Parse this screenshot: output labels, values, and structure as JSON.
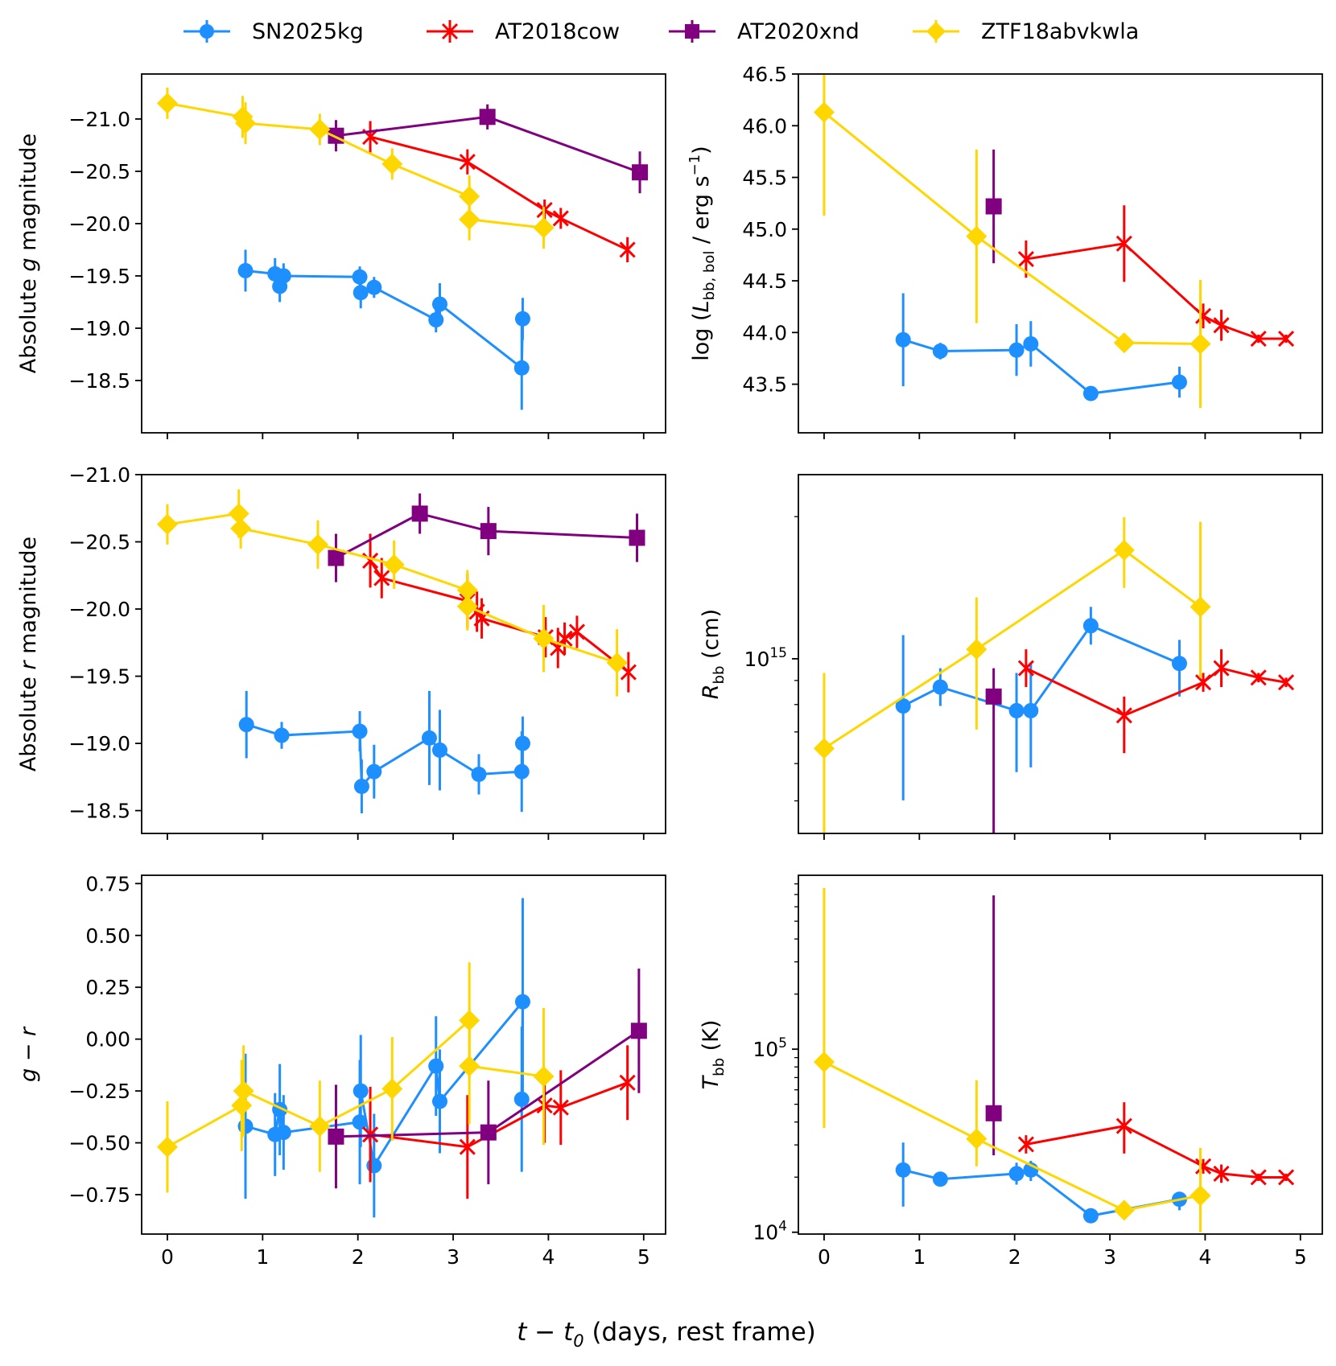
{
  "figure": {
    "xlabel_main": "t − t",
    "xlabel_sub": "0",
    "xlabel_rest": " (days, rest frame)",
    "series_colors": {
      "SN2025kg": "#1e8fff",
      "AT2018cow": "#ff0000",
      "AT2020xnd": "#800080",
      "ZTF18abvkwla": "#ffd700"
    },
    "series_markers": {
      "SN2025kg": "circle",
      "AT2018cow": "x",
      "AT2020xnd": "square",
      "ZTF18abvkwla": "diamond"
    }
  },
  "legend": {
    "placement": "top-center",
    "items": [
      "SN2025kg",
      "AT2018cow",
      "AT2020xnd",
      "ZTF18abvkwla"
    ]
  },
  "chart_data": [
    {
      "id": "g_mag",
      "type": "line",
      "ylabel": "Absolute g magnitude",
      "yscale": "linear",
      "yinvert": true,
      "xlim": [
        -0.27,
        5.23
      ],
      "ylim": [
        -18.0,
        -21.43
      ],
      "xticks": [
        0,
        1,
        2,
        3,
        4,
        5
      ],
      "yticks": [
        -21.0,
        -20.5,
        -20.0,
        -19.5,
        -19.0,
        -18.5
      ],
      "ytick_labels": [
        "−21.0",
        "−20.5",
        "−20.0",
        "−19.5",
        "−19.0",
        "−18.5"
      ],
      "show_xticklabels": false,
      "series": [
        {
          "name": "SN2025kg",
          "points": [
            [
              0.82,
              -19.55,
              0.2
            ],
            [
              1.13,
              -19.52,
              0.15
            ],
            [
              1.18,
              -19.4,
              0.15
            ],
            [
              1.22,
              -19.5,
              0.12
            ],
            [
              2.02,
              -19.49,
              0.1
            ],
            [
              2.03,
              -19.34,
              0.15
            ],
            [
              2.17,
              -19.39,
              0.1
            ],
            [
              2.82,
              -19.08,
              0.12
            ],
            [
              2.86,
              -19.23,
              0.2
            ],
            [
              3.72,
              -18.62,
              0.4
            ],
            [
              3.73,
              -19.09,
              0.2
            ]
          ]
        },
        {
          "name": "AT2018cow",
          "points": [
            [
              2.13,
              -20.83,
              0.15
            ],
            [
              3.15,
              -20.59,
              0.12
            ],
            [
              3.96,
              -20.13,
              0.1
            ],
            [
              4.13,
              -20.05,
              0.1
            ],
            [
              4.83,
              -19.75,
              0.12
            ]
          ]
        },
        {
          "name": "AT2020xnd",
          "points": [
            [
              1.77,
              -20.84,
              0.15
            ],
            [
              3.36,
              -21.02,
              0.12
            ],
            [
              4.96,
              -20.49,
              0.2
            ]
          ]
        },
        {
          "name": "ZTF18abvkwla",
          "points": [
            [
              0.0,
              -21.15,
              0.15
            ],
            [
              0.79,
              -21.02,
              0.2
            ],
            [
              0.82,
              -20.96,
              0.2
            ],
            [
              1.6,
              -20.9,
              0.15
            ],
            [
              2.36,
              -20.57,
              0.15
            ],
            [
              3.17,
              -20.26,
              0.2
            ],
            [
              3.17,
              -20.04,
              0.2
            ],
            [
              3.95,
              -19.96,
              0.2
            ]
          ]
        }
      ]
    },
    {
      "id": "L_bol",
      "type": "line",
      "ylabel": "log (L_bb,bol / erg s⁻¹)",
      "yscale": "linear",
      "yinvert": false,
      "xlim": [
        -0.27,
        5.23
      ],
      "ylim": [
        43.03,
        46.5
      ],
      "xticks": [
        0,
        1,
        2,
        3,
        4,
        5
      ],
      "yticks": [
        43.5,
        44.0,
        44.5,
        45.0,
        45.5,
        46.0,
        46.5
      ],
      "ytick_labels": [
        "43.5",
        "44.0",
        "44.5",
        "45.0",
        "45.5",
        "46.0",
        "46.5"
      ],
      "show_xticklabels": false,
      "series": [
        {
          "name": "SN2025kg",
          "points": [
            [
              0.83,
              43.93,
              0.45
            ],
            [
              1.22,
              43.82,
              0.08
            ],
            [
              2.02,
              43.83,
              0.25
            ],
            [
              2.17,
              43.89,
              0.22
            ],
            [
              2.8,
              43.41,
              0.05
            ],
            [
              3.73,
              43.52,
              0.15
            ]
          ]
        },
        {
          "name": "AT2018cow",
          "points": [
            [
              2.12,
              44.71,
              0.18
            ],
            [
              3.15,
              44.86,
              0.37
            ],
            [
              3.98,
              44.16,
              0.12
            ],
            [
              4.17,
              44.07,
              0.15
            ],
            [
              4.56,
              43.94,
              0.04
            ],
            [
              4.85,
              43.94,
              0.04
            ]
          ]
        },
        {
          "name": "AT2020xnd",
          "points": [
            [
              1.78,
              45.22,
              0.55
            ]
          ]
        },
        {
          "name": "ZTF18abvkwla",
          "points": [
            [
              0.0,
              46.13,
              1.0
            ],
            [
              1.6,
              44.93,
              0.84
            ],
            [
              3.15,
              43.9,
              0.08
            ],
            [
              3.95,
              43.89,
              0.62
            ]
          ]
        }
      ]
    },
    {
      "id": "r_mag",
      "type": "line",
      "ylabel": "Absolute r magnitude",
      "yscale": "linear",
      "yinvert": true,
      "xlim": [
        -0.27,
        5.23
      ],
      "ylim": [
        -18.33,
        -21.0
      ],
      "xticks": [
        0,
        1,
        2,
        3,
        4,
        5
      ],
      "yticks": [
        -21.0,
        -20.5,
        -20.0,
        -19.5,
        -19.0,
        -18.5
      ],
      "ytick_labels": [
        "−21.0",
        "−20.5",
        "−20.0",
        "−19.5",
        "−19.0",
        "−18.5"
      ],
      "show_xticklabels": false,
      "series": [
        {
          "name": "SN2025kg",
          "points": [
            [
              0.83,
              -19.14,
              0.25
            ],
            [
              1.2,
              -19.06,
              0.1
            ],
            [
              2.02,
              -19.09,
              0.15
            ],
            [
              2.04,
              -18.68,
              0.2
            ],
            [
              2.17,
              -18.79,
              0.2
            ],
            [
              2.75,
              -19.04,
              0.35
            ],
            [
              2.86,
              -18.95,
              0.3
            ],
            [
              3.27,
              -18.77,
              0.15
            ],
            [
              3.72,
              -18.79,
              0.3
            ],
            [
              3.73,
              -19.0,
              0.2
            ]
          ]
        },
        {
          "name": "AT2018cow",
          "points": [
            [
              2.13,
              -20.36,
              0.2
            ],
            [
              2.25,
              -20.23,
              0.15
            ],
            [
              3.15,
              -20.06,
              0.2
            ],
            [
              3.25,
              -19.98,
              0.15
            ],
            [
              3.3,
              -19.93,
              0.15
            ],
            [
              3.97,
              -19.79,
              0.15
            ],
            [
              4.1,
              -19.71,
              0.15
            ],
            [
              4.17,
              -19.78,
              0.12
            ],
            [
              4.3,
              -19.83,
              0.12
            ],
            [
              4.84,
              -19.53,
              0.15
            ]
          ]
        },
        {
          "name": "AT2020xnd",
          "points": [
            [
              1.77,
              -20.38,
              0.18
            ],
            [
              2.65,
              -20.71,
              0.15
            ],
            [
              3.37,
              -20.58,
              0.18
            ],
            [
              4.93,
              -20.53,
              0.18
            ]
          ]
        },
        {
          "name": "ZTF18abvkwla",
          "points": [
            [
              0.0,
              -20.63,
              0.15
            ],
            [
              0.75,
              -20.71,
              0.18
            ],
            [
              0.77,
              -20.6,
              0.15
            ],
            [
              1.58,
              -20.48,
              0.18
            ],
            [
              2.38,
              -20.33,
              0.18
            ],
            [
              3.15,
              -20.14,
              0.15
            ],
            [
              3.15,
              -20.02,
              0.18
            ],
            [
              3.95,
              -19.78,
              0.25
            ],
            [
              4.72,
              -19.6,
              0.25
            ]
          ]
        }
      ]
    },
    {
      "id": "R_bb",
      "type": "line",
      "ylabel": "R_bb (cm)",
      "yscale": "log",
      "yinvert": false,
      "xlim": [
        -0.27,
        5.23
      ],
      "ylim_log10": [
        14.63,
        15.39
      ],
      "xticks": [
        0,
        1,
        2,
        3,
        4,
        5
      ],
      "major_ytick_log10": 15,
      "major_ytick_label": "10",
      "major_ytick_exp": "15",
      "minor_ytick_log10": [
        14.699,
        14.778,
        14.845,
        14.903,
        14.954,
        15.301
      ],
      "show_xticklabels": false,
      "series": [
        {
          "name": "SN2025kg",
          "points_log10": [
            [
              0.83,
              14.9,
              0.15,
              0.2
            ],
            [
              1.22,
              14.94,
              0.04,
              0.04
            ],
            [
              2.02,
              14.89,
              0.08,
              0.13
            ],
            [
              2.17,
              14.89,
              0.1,
              0.12
            ],
            [
              2.8,
              15.07,
              0.04,
              0.04
            ],
            [
              3.73,
              14.99,
              0.05,
              0.07
            ]
          ]
        },
        {
          "name": "AT2018cow",
          "points_log10": [
            [
              2.12,
              14.98,
              0.04,
              0.04
            ],
            [
              3.15,
              14.88,
              0.04,
              0.08
            ],
            [
              3.98,
              14.95,
              0.02,
              0.02
            ],
            [
              4.17,
              14.98,
              0.04,
              0.04
            ],
            [
              4.56,
              14.96,
              0.01,
              0.01
            ],
            [
              4.85,
              14.95,
              0.01,
              0.01
            ]
          ]
        },
        {
          "name": "AT2020xnd",
          "points_log10": [
            [
              1.78,
              14.92,
              0.06,
              0.3
            ]
          ]
        },
        {
          "name": "ZTF18abvkwla",
          "points_log10": [
            [
              0.0,
              14.81,
              0.16,
              0.2
            ],
            [
              1.6,
              15.02,
              0.11,
              0.17
            ],
            [
              3.15,
              15.23,
              0.07,
              0.08
            ],
            [
              3.95,
              15.11,
              0.18,
              0.15
            ]
          ]
        }
      ]
    },
    {
      "id": "g_minus_r",
      "type": "line",
      "ylabel": "g − r",
      "yscale": "linear",
      "yinvert": false,
      "xlim": [
        -0.27,
        5.23
      ],
      "ylim": [
        -0.94,
        0.79
      ],
      "xticks": [
        0,
        1,
        2,
        3,
        4,
        5
      ],
      "xtick_labels": [
        "0",
        "1",
        "2",
        "3",
        "4",
        "5"
      ],
      "yticks": [
        -0.75,
        -0.5,
        -0.25,
        0.0,
        0.25,
        0.5,
        0.75
      ],
      "ytick_labels": [
        "−0.75",
        "−0.50",
        "−0.25",
        "0.00",
        "0.25",
        "0.50",
        "0.75"
      ],
      "show_xticklabels": true,
      "series": [
        {
          "name": "SN2025kg",
          "points": [
            [
              0.82,
              -0.42,
              0.35
            ],
            [
              1.13,
              -0.46,
              0.2
            ],
            [
              1.18,
              -0.34,
              0.22
            ],
            [
              1.22,
              -0.45,
              0.18
            ],
            [
              2.02,
              -0.4,
              0.3
            ],
            [
              2.03,
              -0.25,
              0.27
            ],
            [
              2.17,
              -0.61,
              0.25
            ],
            [
              2.82,
              -0.13,
              0.24
            ],
            [
              2.86,
              -0.3,
              0.25
            ],
            [
              3.73,
              0.18,
              0.5
            ],
            [
              3.72,
              -0.29,
              0.35
            ]
          ]
        },
        {
          "name": "AT2018cow",
          "points": [
            [
              2.13,
              -0.46,
              0.23
            ],
            [
              3.15,
              -0.52,
              0.25
            ],
            [
              3.96,
              -0.32,
              0.18
            ],
            [
              4.13,
              -0.33,
              0.18
            ],
            [
              4.83,
              -0.21,
              0.18
            ]
          ]
        },
        {
          "name": "AT2020xnd",
          "points": [
            [
              1.77,
              -0.47,
              0.25
            ],
            [
              3.37,
              -0.45,
              0.25
            ],
            [
              4.95,
              0.04,
              0.3
            ]
          ]
        },
        {
          "name": "ZTF18abvkwla",
          "points": [
            [
              0.0,
              -0.52,
              0.22
            ],
            [
              0.78,
              -0.32,
              0.22
            ],
            [
              0.8,
              -0.25,
              0.22
            ],
            [
              1.6,
              -0.42,
              0.22
            ],
            [
              2.36,
              -0.24,
              0.25
            ],
            [
              3.17,
              0.09,
              0.28
            ],
            [
              3.17,
              -0.13,
              0.28
            ],
            [
              3.95,
              -0.18,
              0.33
            ]
          ]
        }
      ]
    },
    {
      "id": "T_bb",
      "type": "line",
      "ylabel": "T_bb (K)",
      "yscale": "log",
      "yinvert": false,
      "xlim": [
        -0.27,
        5.23
      ],
      "ylim_log10": [
        3.99,
        5.95
      ],
      "xticks": [
        0,
        1,
        2,
        3,
        4,
        5
      ],
      "xtick_labels": [
        "0",
        "1",
        "2",
        "3",
        "4",
        "5"
      ],
      "major_yticks_log10": [
        4,
        5
      ],
      "major_ytick_exps": [
        "4",
        "5"
      ],
      "major_ytick_base": "10",
      "minor_ytick_log10": [
        4.301,
        4.477,
        4.602,
        4.699,
        4.778,
        4.845,
        4.903,
        4.954,
        5.301,
        5.477,
        5.602,
        5.699,
        5.778,
        5.845,
        5.903
      ],
      "show_xticklabels": true,
      "series": [
        {
          "name": "SN2025kg",
          "points_log10": [
            [
              0.83,
              4.34,
              0.15,
              0.2
            ],
            [
              1.22,
              4.29,
              0.03,
              0.03
            ],
            [
              2.02,
              4.32,
              0.06,
              0.06
            ],
            [
              2.17,
              4.34,
              0.05,
              0.06
            ],
            [
              2.8,
              4.09,
              0.03,
              0.03
            ],
            [
              3.73,
              4.18,
              0.04,
              0.06
            ]
          ]
        },
        {
          "name": "AT2018cow",
          "points_log10": [
            [
              2.12,
              4.48,
              0.05,
              0.05
            ],
            [
              3.15,
              4.58,
              0.13,
              0.15
            ],
            [
              3.98,
              4.36,
              0.04,
              0.04
            ],
            [
              4.17,
              4.32,
              0.05,
              0.05
            ],
            [
              4.56,
              4.3,
              0.02,
              0.02
            ],
            [
              4.85,
              4.3,
              0.02,
              0.02
            ]
          ]
        },
        {
          "name": "AT2020xnd",
          "points_log10": [
            [
              1.78,
              4.65,
              1.19,
              0.23
            ]
          ]
        },
        {
          "name": "ZTF18abvkwla",
          "points_log10": [
            [
              0.0,
              4.93,
              0.95,
              0.36
            ],
            [
              1.6,
              4.51,
              0.32,
              0.15
            ],
            [
              3.15,
              4.12,
              0.05,
              0.05
            ],
            [
              3.95,
              4.2,
              0.26,
              0.2
            ]
          ]
        }
      ]
    }
  ]
}
